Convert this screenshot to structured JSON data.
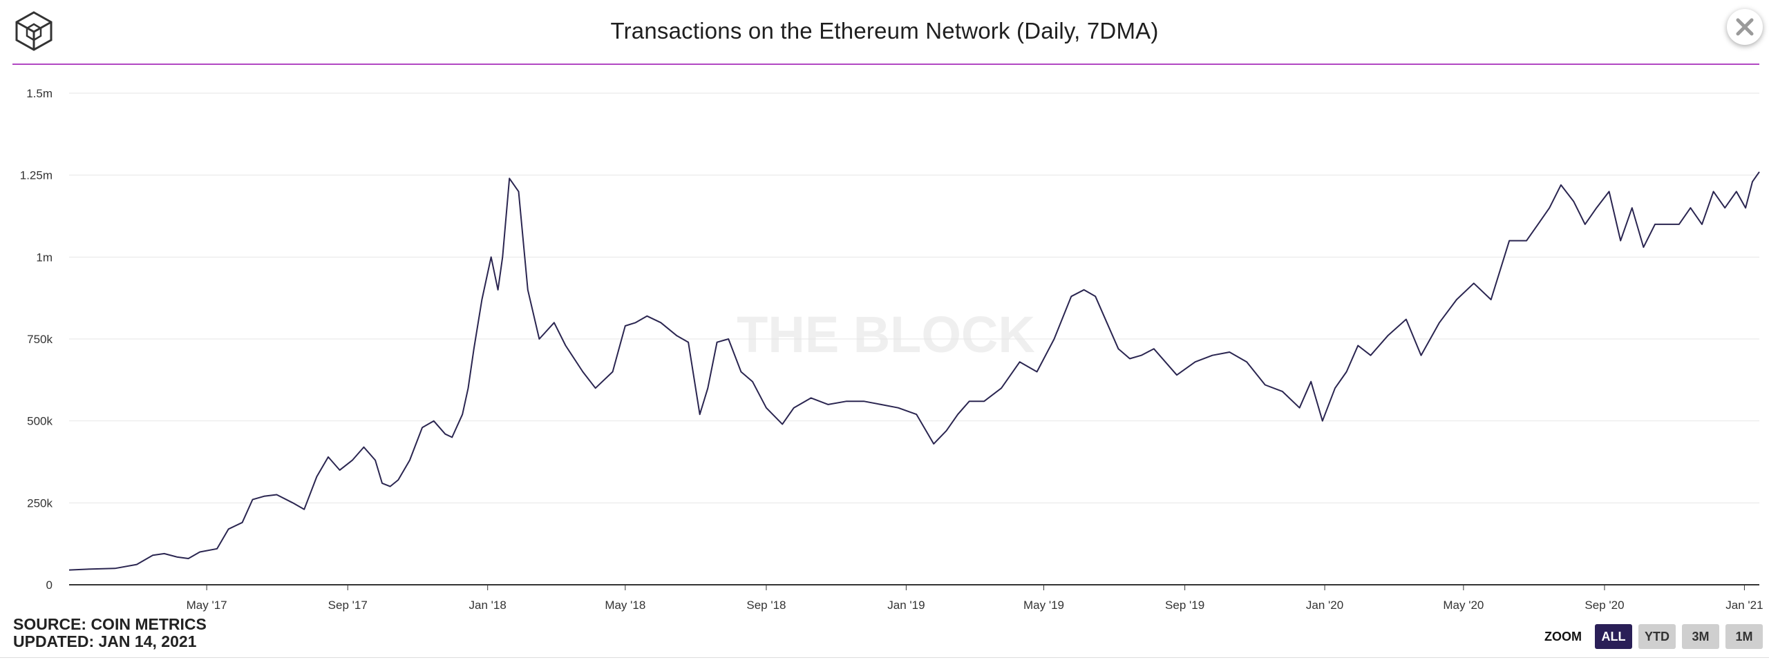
{
  "header": {
    "title": "Transactions on the Ethereum Network (Daily, 7DMA)",
    "logo_icon": "the-block-cube-logo",
    "close_icon": "close-icon"
  },
  "footer": {
    "source": "SOURCE: COIN METRICS",
    "updated": "UPDATED: JAN 14, 2021"
  },
  "zoom": {
    "label": "ZOOM",
    "buttons": [
      "ALL",
      "YTD",
      "3M",
      "1M"
    ],
    "active": "ALL"
  },
  "watermark": "THE BLOCK",
  "colors": {
    "line": "#2a2550",
    "accent": "#b146c2",
    "zoom_active": "#2a1f57",
    "grid": "#e6e6e6"
  },
  "chart_data": {
    "type": "line",
    "title": "Transactions on the Ethereum Network (Daily, 7DMA)",
    "xlabel": "",
    "ylabel": "",
    "ylim": [
      0,
      1500000
    ],
    "xlim": [
      "2017-01-01",
      "2021-01-14"
    ],
    "y_ticks": [
      {
        "value": 0,
        "label": "0"
      },
      {
        "value": 250000,
        "label": "250k"
      },
      {
        "value": 500000,
        "label": "500k"
      },
      {
        "value": 750000,
        "label": "750k"
      },
      {
        "value": 1000000,
        "label": "1m"
      },
      {
        "value": 1250000,
        "label": "1.25m"
      },
      {
        "value": 1500000,
        "label": "1.5m"
      }
    ],
    "x_ticks": [
      {
        "date": "2017-05-01",
        "label": "May '17"
      },
      {
        "date": "2017-09-01",
        "label": "Sep '17"
      },
      {
        "date": "2018-01-01",
        "label": "Jan '18"
      },
      {
        "date": "2018-05-01",
        "label": "May '18"
      },
      {
        "date": "2018-09-01",
        "label": "Sep '18"
      },
      {
        "date": "2019-01-01",
        "label": "Jan '19"
      },
      {
        "date": "2019-05-01",
        "label": "May '19"
      },
      {
        "date": "2019-09-01",
        "label": "Sep '19"
      },
      {
        "date": "2020-01-01",
        "label": "Jan '20"
      },
      {
        "date": "2020-05-01",
        "label": "May '20"
      },
      {
        "date": "2020-09-01",
        "label": "Sep '20"
      },
      {
        "date": "2021-01-01",
        "label": "Jan '21"
      }
    ],
    "grid": true,
    "legend": "none",
    "series": [
      {
        "x": [
          "2017-01-01",
          "2017-01-20",
          "2017-02-10",
          "2017-03-01",
          "2017-03-15",
          "2017-03-25",
          "2017-04-05",
          "2017-04-15",
          "2017-04-25",
          "2017-05-10",
          "2017-05-20",
          "2017-06-01",
          "2017-06-10",
          "2017-06-20",
          "2017-07-01",
          "2017-07-15",
          "2017-07-25",
          "2017-08-05",
          "2017-08-15",
          "2017-08-25",
          "2017-09-05",
          "2017-09-15",
          "2017-09-25",
          "2017-10-01",
          "2017-10-08",
          "2017-10-15",
          "2017-10-25",
          "2017-11-05",
          "2017-11-15",
          "2017-11-25",
          "2017-12-01",
          "2017-12-10",
          "2017-12-15",
          "2017-12-20",
          "2017-12-27",
          "2018-01-04",
          "2018-01-10",
          "2018-01-14",
          "2018-01-20",
          "2018-01-28",
          "2018-02-05",
          "2018-02-15",
          "2018-02-28",
          "2018-03-10",
          "2018-03-25",
          "2018-04-05",
          "2018-04-20",
          "2018-05-01",
          "2018-05-10",
          "2018-05-20",
          "2018-06-01",
          "2018-06-15",
          "2018-06-25",
          "2018-07-05",
          "2018-07-12",
          "2018-07-20",
          "2018-07-30",
          "2018-08-10",
          "2018-08-20",
          "2018-09-01",
          "2018-09-15",
          "2018-09-25",
          "2018-10-10",
          "2018-10-25",
          "2018-11-10",
          "2018-11-25",
          "2018-12-10",
          "2018-12-25",
          "2019-01-10",
          "2019-01-25",
          "2019-02-05",
          "2019-02-15",
          "2019-02-25",
          "2019-03-10",
          "2019-03-25",
          "2019-04-10",
          "2019-04-25",
          "2019-05-10",
          "2019-05-25",
          "2019-06-05",
          "2019-06-15",
          "2019-06-25",
          "2019-07-05",
          "2019-07-15",
          "2019-07-25",
          "2019-08-05",
          "2019-08-15",
          "2019-08-25",
          "2019-09-10",
          "2019-09-25",
          "2019-10-10",
          "2019-10-25",
          "2019-11-10",
          "2019-11-25",
          "2019-12-10",
          "2019-12-20",
          "2019-12-30",
          "2020-01-10",
          "2020-01-20",
          "2020-01-30",
          "2020-02-10",
          "2020-02-25",
          "2020-03-12",
          "2020-03-25",
          "2020-04-10",
          "2020-04-25",
          "2020-05-10",
          "2020-05-25",
          "2020-06-10",
          "2020-06-25",
          "2020-07-05",
          "2020-07-15",
          "2020-07-25",
          "2020-08-05",
          "2020-08-15",
          "2020-08-25",
          "2020-09-05",
          "2020-09-15",
          "2020-09-25",
          "2020-10-05",
          "2020-10-15",
          "2020-10-25",
          "2020-11-05",
          "2020-11-15",
          "2020-11-25",
          "2020-12-05",
          "2020-12-15",
          "2020-12-25",
          "2021-01-02",
          "2021-01-08",
          "2021-01-14"
        ],
        "y": [
          45000,
          48000,
          50000,
          62000,
          90000,
          95000,
          85000,
          80000,
          100000,
          110000,
          170000,
          190000,
          260000,
          270000,
          275000,
          250000,
          230000,
          330000,
          390000,
          350000,
          380000,
          420000,
          380000,
          310000,
          300000,
          320000,
          380000,
          480000,
          500000,
          460000,
          450000,
          520000,
          600000,
          720000,
          870000,
          1000000,
          900000,
          1000000,
          1240000,
          1200000,
          900000,
          750000,
          800000,
          730000,
          650000,
          600000,
          650000,
          790000,
          800000,
          820000,
          800000,
          760000,
          740000,
          520000,
          600000,
          740000,
          750000,
          650000,
          620000,
          540000,
          490000,
          540000,
          570000,
          550000,
          560000,
          560000,
          550000,
          540000,
          520000,
          430000,
          470000,
          520000,
          560000,
          560000,
          600000,
          680000,
          650000,
          750000,
          880000,
          900000,
          880000,
          800000,
          720000,
          690000,
          700000,
          720000,
          680000,
          640000,
          680000,
          700000,
          710000,
          680000,
          610000,
          590000,
          540000,
          620000,
          500000,
          600000,
          650000,
          730000,
          700000,
          760000,
          810000,
          700000,
          800000,
          870000,
          920000,
          870000,
          1050000,
          1050000,
          1100000,
          1150000,
          1220000,
          1170000,
          1100000,
          1150000,
          1200000,
          1050000,
          1150000,
          1030000,
          1100000,
          1100000,
          1100000,
          1150000,
          1100000,
          1200000,
          1150000,
          1200000,
          1150000,
          1230000,
          1260000
        ]
      }
    ]
  }
}
